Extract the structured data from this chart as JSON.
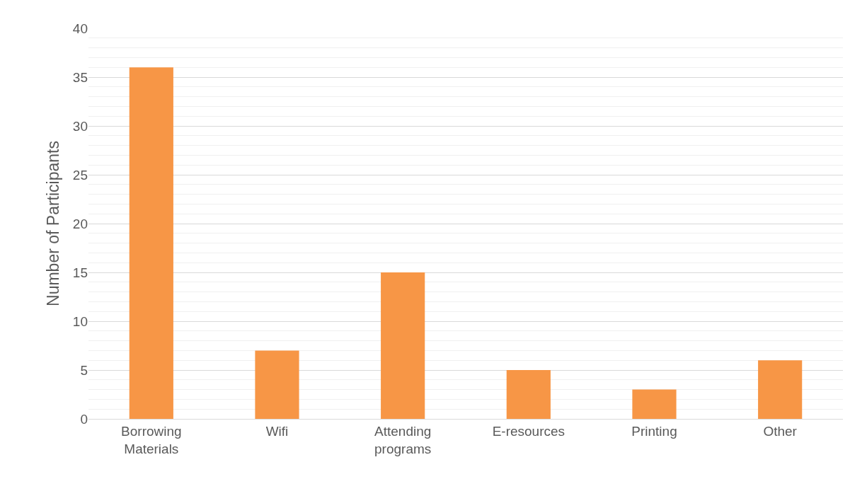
{
  "chart_data": {
    "type": "bar",
    "ylabel": "Number of Participants",
    "categories": [
      "Borrowing Materials",
      "Wifi",
      "Attending programs",
      "E-resources",
      "Printing",
      "Other"
    ],
    "values": [
      36,
      7,
      15,
      5,
      3,
      6
    ],
    "color": "#f79646",
    "ylim": [
      0,
      40
    ],
    "yticks": [
      0,
      {
        "value": 1,
        "label": null
      },
      {
        "value": 2,
        "label": null
      },
      {
        "value": 3,
        "label": null
      },
      {
        "value": 4,
        "label": null
      },
      5,
      {
        "value": 6,
        "label": null
      },
      {
        "value": 7,
        "label": null
      },
      {
        "value": 8,
        "label": null
      },
      {
        "value": 9,
        "label": null
      },
      10,
      {
        "value": 11,
        "label": null
      },
      {
        "value": 12,
        "label": null
      },
      {
        "value": 13,
        "label": null
      },
      {
        "value": 14,
        "label": null
      },
      15,
      {
        "value": 16,
        "label": null
      },
      {
        "value": 17,
        "label": null
      },
      {
        "value": 18,
        "label": null
      },
      {
        "value": 19,
        "label": null
      },
      20,
      {
        "value": 21,
        "label": null
      },
      {
        "value": 22,
        "label": null
      },
      {
        "value": 23,
        "label": null
      },
      {
        "value": 24,
        "label": null
      },
      25,
      {
        "value": 26,
        "label": null
      },
      {
        "value": 27,
        "label": null
      },
      {
        "value": 28,
        "label": null
      },
      {
        "value": 29,
        "label": null
      },
      30,
      {
        "value": 31,
        "label": null
      },
      {
        "value": 32,
        "label": null
      },
      {
        "value": 33,
        "label": null
      },
      {
        "value": 34,
        "label": null
      },
      35,
      {
        "value": 36,
        "label": null
      },
      {
        "value": 37,
        "label": null
      },
      {
        "value": 38,
        "label": null
      },
      {
        "value": 39,
        "label": null
      },
      40
    ],
    "grid": "y"
  }
}
